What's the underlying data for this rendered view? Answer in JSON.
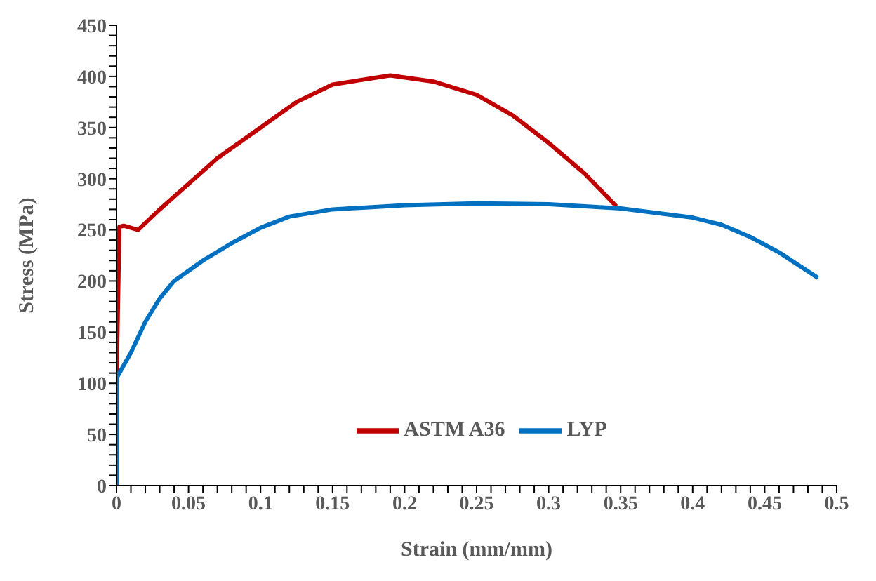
{
  "chart_data": {
    "type": "line",
    "xlabel": "Strain (mm/mm)",
    "ylabel": "Stress (MPa)",
    "xlim": [
      0,
      0.5
    ],
    "ylim": [
      0,
      450
    ],
    "xticks": [
      0,
      {
        "value": 0.01,
        "label": null
      },
      {
        "value": 0.02,
        "label": null
      },
      {
        "value": 0.03,
        "label": null
      },
      {
        "value": 0.04,
        "label": null
      },
      0.05,
      {
        "value": 0.06,
        "label": null
      },
      {
        "value": 0.07,
        "label": null
      },
      {
        "value": 0.08,
        "label": null
      },
      {
        "value": 0.09,
        "label": null
      },
      0.1,
      {
        "value": 0.11,
        "label": null
      },
      {
        "value": 0.12,
        "label": null
      },
      {
        "value": 0.13,
        "label": null
      },
      {
        "value": 0.14,
        "label": null
      },
      0.15,
      {
        "value": 0.16,
        "label": null
      },
      {
        "value": 0.17,
        "label": null
      },
      {
        "value": 0.18,
        "label": null
      },
      {
        "value": 0.19,
        "label": null
      },
      0.2,
      {
        "value": 0.21,
        "label": null
      },
      {
        "value": 0.22,
        "label": null
      },
      {
        "value": 0.23,
        "label": null
      },
      {
        "value": 0.24,
        "label": null
      },
      0.25,
      {
        "value": 0.26,
        "label": null
      },
      {
        "value": 0.27,
        "label": null
      },
      {
        "value": 0.28,
        "label": null
      },
      {
        "value": 0.29,
        "label": null
      },
      0.3,
      {
        "value": 0.31,
        "label": null
      },
      {
        "value": 0.32,
        "label": null
      },
      {
        "value": 0.33,
        "label": null
      },
      {
        "value": 0.34,
        "label": null
      },
      0.35,
      {
        "value": 0.36,
        "label": null
      },
      {
        "value": 0.37,
        "label": null
      },
      {
        "value": 0.38,
        "label": null
      },
      {
        "value": 0.39,
        "label": null
      },
      0.4,
      {
        "value": 0.41,
        "label": null
      },
      {
        "value": 0.42,
        "label": null
      },
      {
        "value": 0.43,
        "label": null
      },
      {
        "value": 0.44,
        "label": null
      },
      0.45,
      {
        "value": 0.46,
        "label": null
      },
      {
        "value": 0.47,
        "label": null
      },
      {
        "value": 0.48,
        "label": null
      },
      {
        "value": 0.49,
        "label": null
      },
      0.5
    ],
    "yticks": [
      0,
      {
        "value": 10,
        "label": null
      },
      {
        "value": 20,
        "label": null
      },
      {
        "value": 30,
        "label": null
      },
      {
        "value": 40,
        "label": null
      },
      50,
      {
        "value": 60,
        "label": null
      },
      {
        "value": 70,
        "label": null
      },
      {
        "value": 80,
        "label": null
      },
      {
        "value": 90,
        "label": null
      },
      100,
      {
        "value": 110,
        "label": null
      },
      {
        "value": 120,
        "label": null
      },
      {
        "value": 130,
        "label": null
      },
      {
        "value": 140,
        "label": null
      },
      150,
      {
        "value": 160,
        "label": null
      },
      {
        "value": 170,
        "label": null
      },
      {
        "value": 180,
        "label": null
      },
      {
        "value": 190,
        "label": null
      },
      200,
      {
        "value": 210,
        "label": null
      },
      {
        "value": 220,
        "label": null
      },
      {
        "value": 230,
        "label": null
      },
      {
        "value": 240,
        "label": null
      },
      250,
      {
        "value": 260,
        "label": null
      },
      {
        "value": 270,
        "label": null
      },
      {
        "value": 280,
        "label": null
      },
      {
        "value": 290,
        "label": null
      },
      300,
      {
        "value": 310,
        "label": null
      },
      {
        "value": 320,
        "label": null
      },
      {
        "value": 330,
        "label": null
      },
      {
        "value": 340,
        "label": null
      },
      350,
      {
        "value": 360,
        "label": null
      },
      {
        "value": 370,
        "label": null
      },
      {
        "value": 380,
        "label": null
      },
      {
        "value": 390,
        "label": null
      },
      400,
      {
        "value": 410,
        "label": null
      },
      {
        "value": 420,
        "label": null
      },
      {
        "value": 430,
        "label": null
      },
      {
        "value": 440,
        "label": null
      },
      450
    ],
    "grid": false,
    "legend": "bottom",
    "marker": "none",
    "line_style": "solid",
    "series": [
      {
        "name": "ASTM A36",
        "color": "#c00000",
        "x": [
          0,
          0.002,
          0.005,
          0.015,
          0.03,
          0.05,
          0.07,
          0.1,
          0.125,
          0.15,
          0.19,
          0.22,
          0.25,
          0.275,
          0.3,
          0.325,
          0.347
        ],
        "values": [
          100,
          253,
          254,
          250,
          270,
          295,
          320,
          350,
          375,
          392,
          401,
          395,
          382,
          362,
          335,
          305,
          273
        ]
      },
      {
        "name": "LYP",
        "color": "#0070c0",
        "x": [
          0,
          0,
          0.01,
          0.02,
          0.03,
          0.04,
          0.06,
          0.08,
          0.1,
          0.12,
          0.15,
          0.2,
          0.25,
          0.3,
          0.35,
          0.4,
          0.42,
          0.44,
          0.46,
          0.487
        ],
        "values": [
          0,
          105,
          130,
          160,
          183,
          200,
          220,
          237,
          252,
          263,
          270,
          274,
          276,
          275,
          271,
          262,
          255,
          243,
          228,
          203
        ]
      }
    ]
  }
}
